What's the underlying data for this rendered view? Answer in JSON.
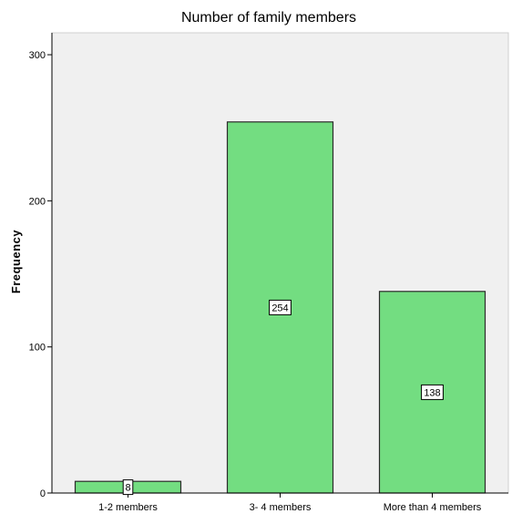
{
  "chart_data": {
    "type": "bar",
    "title": "Number of family members",
    "xlabel": "",
    "ylabel": "Frequency",
    "categories": [
      "1-2  members",
      "3- 4 members",
      "More than 4 members"
    ],
    "values": [
      8,
      254,
      138
    ],
    "data_labels": [
      "8",
      "254",
      "138"
    ],
    "ylim": [
      0,
      315
    ],
    "yticks": [
      0,
      100,
      200,
      300
    ],
    "ytick_labels": [
      "0",
      "100",
      "200",
      "300"
    ],
    "grid": false,
    "legend": "none",
    "colors": {
      "bar_fill": "#73dd81",
      "bar_stroke": "#2b2b2b",
      "plot_background": "#f0f0f0",
      "axis": "#000000",
      "label_box_fill": "#ffffff"
    }
  }
}
